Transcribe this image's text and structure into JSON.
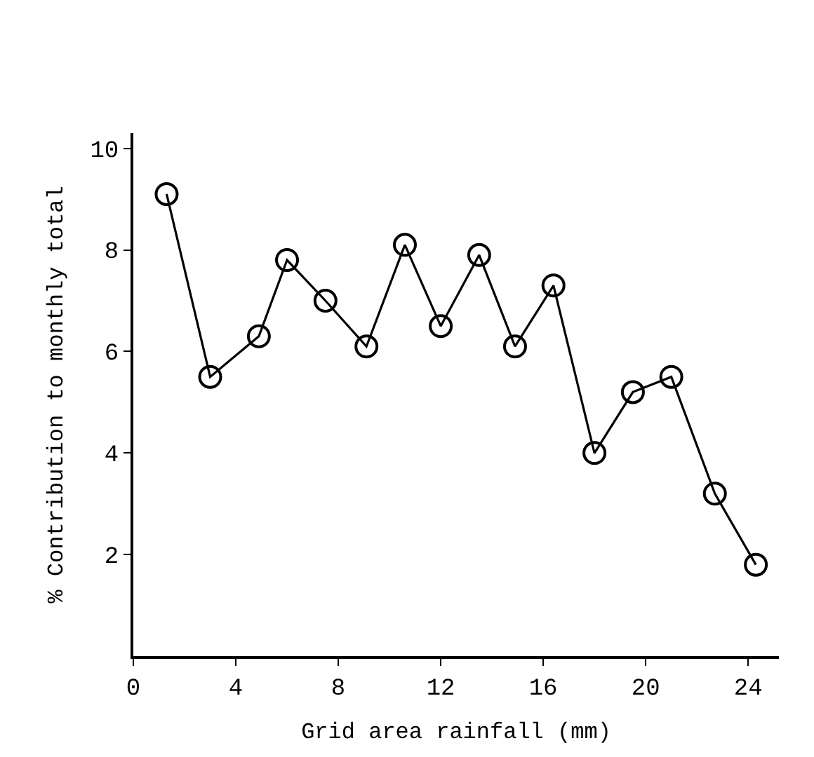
{
  "chart_data": {
    "type": "line",
    "xlabel": "Grid area rainfall (mm)",
    "ylabel": "% Contribution to monthly total",
    "x": [
      1.3,
      3.0,
      4.9,
      6.0,
      7.5,
      9.1,
      10.6,
      12.0,
      13.5,
      14.9,
      16.4,
      18.0,
      19.5,
      21.0,
      22.7,
      24.3
    ],
    "series": [
      {
        "color": "#000000",
        "values": [
          9.1,
          5.5,
          6.3,
          7.8,
          7.0,
          6.1,
          8.1,
          6.5,
          7.9,
          6.1,
          7.3,
          4.0,
          5.2,
          5.5,
          3.2,
          1.8
        ]
      }
    ],
    "xlim": [
      0,
      25.2
    ],
    "ylim": [
      0,
      10.3
    ],
    "xticks": [
      0,
      4,
      8,
      12,
      16,
      20,
      24
    ],
    "yticks": [
      2,
      4,
      6,
      8,
      10
    ],
    "marker": "circle",
    "line_style": "solid"
  }
}
